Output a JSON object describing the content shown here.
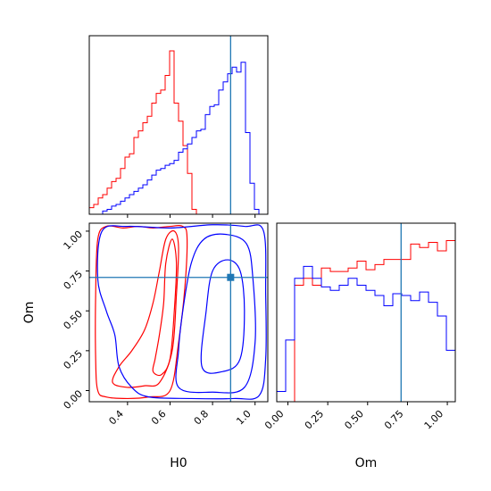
{
  "chart_data": {
    "type": "corner",
    "parameters": [
      "H0",
      "Om"
    ],
    "truths": {
      "H0": 0.885,
      "Om": 0.71
    },
    "colors": {
      "red": "#ff0000",
      "blue": "#0000ff",
      "truth": "#1f77b4"
    },
    "axes": {
      "H0": {
        "label": "H0",
        "range": [
          0.22,
          1.06
        ],
        "ticks": [
          0.4,
          0.6,
          0.8,
          1.0
        ],
        "tick_labels": [
          "0.4",
          "0.6",
          "0.8",
          "1.0"
        ]
      },
      "Om": {
        "label": "Om",
        "range": [
          -0.07,
          1.05
        ],
        "ticks": [
          0.0,
          0.25,
          0.5,
          0.75,
          1.0
        ],
        "tick_labels": [
          "0.00",
          "0.25",
          "0.50",
          "0.75",
          "1.00"
        ]
      }
    },
    "hist_H0": {
      "edges": [
        0.22,
        0.241,
        0.262,
        0.283,
        0.304,
        0.325,
        0.346,
        0.367,
        0.388,
        0.409,
        0.43,
        0.451,
        0.472,
        0.493,
        0.514,
        0.535,
        0.556,
        0.577,
        0.598,
        0.619,
        0.64,
        0.661,
        0.682,
        0.703,
        0.724,
        0.745,
        0.766,
        0.787,
        0.808,
        0.829,
        0.85,
        0.871,
        0.892,
        0.913,
        0.934,
        0.955,
        0.976,
        0.997,
        1.018,
        1.039,
        1.06
      ],
      "series": [
        {
          "color": "red",
          "values": [
            0.04,
            0.06,
            0.1,
            0.12,
            0.16,
            0.2,
            0.22,
            0.28,
            0.35,
            0.37,
            0.47,
            0.51,
            0.56,
            0.6,
            0.68,
            0.74,
            0.76,
            0.85,
            1.0,
            0.68,
            0.57,
            0.42,
            0.25,
            0.03,
            0,
            0,
            0,
            0,
            0,
            0,
            0,
            0,
            0,
            0,
            0,
            0,
            0,
            0,
            0,
            0
          ]
        },
        {
          "color": "blue",
          "values": [
            0,
            0,
            0,
            0.02,
            0.03,
            0.05,
            0.06,
            0.08,
            0.1,
            0.12,
            0.14,
            0.16,
            0.18,
            0.21,
            0.24,
            0.27,
            0.28,
            0.3,
            0.31,
            0.33,
            0.38,
            0.4,
            0.43,
            0.47,
            0.51,
            0.52,
            0.61,
            0.66,
            0.67,
            0.76,
            0.81,
            0.86,
            0.9,
            0.87,
            0.93,
            0.5,
            0.19,
            0.03,
            0,
            0
          ]
        }
      ]
    },
    "hist_Om": {
      "edges": [
        -0.07,
        -0.014,
        0.042,
        0.098,
        0.154,
        0.21,
        0.266,
        0.322,
        0.378,
        0.434,
        0.49,
        0.546,
        0.602,
        0.658,
        0.714,
        0.77,
        0.826,
        0.882,
        0.938,
        0.994,
        1.05
      ],
      "series": [
        {
          "color": "red",
          "values": [
            0,
            0,
            0.68,
            0.72,
            0.68,
            0.78,
            0.76,
            0.76,
            0.78,
            0.82,
            0.77,
            0.8,
            0.83,
            0.83,
            0.83,
            0.92,
            0.9,
            0.93,
            0.88,
            0.94
          ]
        },
        {
          "color": "blue",
          "values": [
            0.06,
            0.36,
            0.72,
            0.79,
            0.72,
            0.67,
            0.65,
            0.68,
            0.72,
            0.68,
            0.65,
            0.62,
            0.56,
            0.63,
            0.62,
            0.59,
            0.64,
            0.58,
            0.5,
            0.3
          ]
        }
      ]
    },
    "contours": [
      {
        "color": "red",
        "level": "outer",
        "points": [
          [
            0.26,
            0.0
          ],
          [
            0.3,
            -0.04
          ],
          [
            0.4,
            -0.05
          ],
          [
            0.5,
            -0.04
          ],
          [
            0.6,
            0.0
          ],
          [
            0.64,
            0.3
          ],
          [
            0.67,
            0.65
          ],
          [
            0.68,
            0.96
          ],
          [
            0.66,
            1.03
          ],
          [
            0.6,
            1.03
          ],
          [
            0.52,
            1.02
          ],
          [
            0.45,
            1.03
          ],
          [
            0.38,
            1.02
          ],
          [
            0.3,
            1.03
          ],
          [
            0.26,
            0.95
          ],
          [
            0.25,
            0.6
          ],
          [
            0.25,
            0.2
          ]
        ]
      },
      {
        "color": "red",
        "level": "inner",
        "points": [
          [
            0.33,
            0.05
          ],
          [
            0.4,
            0.02
          ],
          [
            0.48,
            0.03
          ],
          [
            0.55,
            0.05
          ],
          [
            0.61,
            0.25
          ],
          [
            0.63,
            0.6
          ],
          [
            0.64,
            0.9
          ],
          [
            0.62,
            1.0
          ],
          [
            0.58,
            0.95
          ],
          [
            0.55,
            0.75
          ],
          [
            0.52,
            0.55
          ],
          [
            0.48,
            0.38
          ],
          [
            0.42,
            0.25
          ],
          [
            0.36,
            0.15
          ]
        ]
      },
      {
        "color": "red",
        "level": "core",
        "points": [
          [
            0.52,
            0.12
          ],
          [
            0.56,
            0.1
          ],
          [
            0.6,
            0.2
          ],
          [
            0.62,
            0.5
          ],
          [
            0.63,
            0.8
          ],
          [
            0.61,
            0.95
          ],
          [
            0.58,
            0.8
          ],
          [
            0.57,
            0.55
          ],
          [
            0.55,
            0.35
          ],
          [
            0.53,
            0.2
          ]
        ]
      },
      {
        "color": "blue",
        "level": "outer",
        "points": [
          [
            0.5,
            -0.04
          ],
          [
            0.7,
            -0.05
          ],
          [
            0.9,
            -0.05
          ],
          [
            1.02,
            -0.03
          ],
          [
            1.05,
            0.2
          ],
          [
            1.05,
            0.6
          ],
          [
            1.04,
            1.0
          ],
          [
            0.95,
            1.03
          ],
          [
            0.8,
            1.04
          ],
          [
            0.6,
            1.02
          ],
          [
            0.4,
            1.03
          ],
          [
            0.28,
            1.0
          ],
          [
            0.26,
            0.7
          ],
          [
            0.3,
            0.5
          ],
          [
            0.34,
            0.35
          ],
          [
            0.36,
            0.15
          ],
          [
            0.42,
            0.02
          ]
        ]
      },
      {
        "color": "blue",
        "level": "inner",
        "points": [
          [
            0.64,
            0.02
          ],
          [
            0.8,
            -0.01
          ],
          [
            0.95,
            0.02
          ],
          [
            1.0,
            0.3
          ],
          [
            0.99,
            0.7
          ],
          [
            0.96,
            0.92
          ],
          [
            0.86,
            0.98
          ],
          [
            0.76,
            0.95
          ],
          [
            0.7,
            0.8
          ],
          [
            0.66,
            0.5
          ],
          [
            0.64,
            0.25
          ]
        ]
      },
      {
        "color": "blue",
        "level": "core",
        "points": [
          [
            0.75,
            0.15
          ],
          [
            0.85,
            0.12
          ],
          [
            0.93,
            0.2
          ],
          [
            0.95,
            0.5
          ],
          [
            0.93,
            0.75
          ],
          [
            0.87,
            0.82
          ],
          [
            0.8,
            0.75
          ],
          [
            0.77,
            0.5
          ]
        ]
      }
    ]
  }
}
